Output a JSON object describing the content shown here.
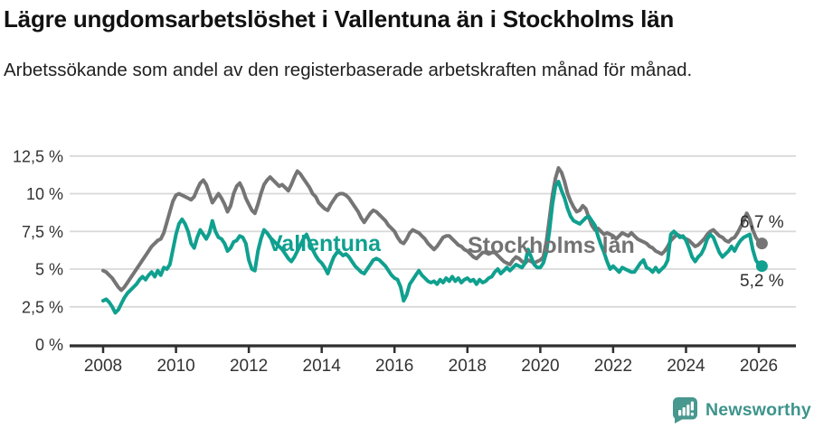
{
  "title": "Lägre ungdomsarbetslöshet i Vallentuna än i Stockholms län",
  "subtitle": "Arbetssökande som andel av den registerbaserade arbetskraften månad för månad.",
  "footer": {
    "brand": "Newsworthy"
  },
  "chart_data": {
    "type": "line",
    "title": "Lägre ungdomsarbetslöshet i Vallentuna än i Stockholms län",
    "subtitle": "Arbetssökande som andel av den registerbaserade arbetskraften månad för månad.",
    "grid": "horizontal",
    "legend_position": "inline-labels",
    "x_axis": {
      "tick_years": [
        2008,
        2010,
        2012,
        2014,
        2016,
        2018,
        2020,
        2022,
        2024,
        2026
      ],
      "range": [
        2008.0,
        2026.17
      ]
    },
    "y_axis": {
      "values": [
        0,
        2.5,
        5,
        7.5,
        10,
        12.5
      ],
      "labels": [
        "0 %",
        "2,5 %",
        "5 %",
        "7,5 %",
        "10 %",
        "12,5 %"
      ],
      "range": [
        0,
        13.0
      ]
    },
    "series": [
      {
        "id": "stockholms-lan",
        "name": "Stockholms län",
        "color": "#757575",
        "end_label": "6,7 %",
        "end_value": 6.7,
        "start_year": 2008,
        "points_per_year": 12,
        "values": [
          4.9,
          4.8,
          4.6,
          4.4,
          4.1,
          3.8,
          3.6,
          3.8,
          4.1,
          4.4,
          4.7,
          5.0,
          5.3,
          5.6,
          5.9,
          6.2,
          6.5,
          6.7,
          6.9,
          7.0,
          7.4,
          8.1,
          8.8,
          9.5,
          9.9,
          10.0,
          9.9,
          9.8,
          9.7,
          9.6,
          9.8,
          10.3,
          10.7,
          10.9,
          10.6,
          10.0,
          9.4,
          9.7,
          10.0,
          9.7,
          9.3,
          8.8,
          9.2,
          10.0,
          10.5,
          10.7,
          10.3,
          9.7,
          9.3,
          8.9,
          8.7,
          9.3,
          10.0,
          10.6,
          10.9,
          11.1,
          10.9,
          10.7,
          10.5,
          10.6,
          10.4,
          10.2,
          10.6,
          11.1,
          11.5,
          11.3,
          11.0,
          10.7,
          10.4,
          10.0,
          9.8,
          9.4,
          9.2,
          9.0,
          8.9,
          9.3,
          9.6,
          9.9,
          10.0,
          10.0,
          9.9,
          9.7,
          9.4,
          9.1,
          8.8,
          8.4,
          8.1,
          8.4,
          8.7,
          8.9,
          8.8,
          8.6,
          8.4,
          8.2,
          7.9,
          7.7,
          7.5,
          7.1,
          6.8,
          6.7,
          7.0,
          7.4,
          7.6,
          7.5,
          7.4,
          7.2,
          7.0,
          6.7,
          6.5,
          6.3,
          6.5,
          6.8,
          7.1,
          7.2,
          7.2,
          7.0,
          6.8,
          6.6,
          6.5,
          6.3,
          6.2,
          6.0,
          5.8,
          5.7,
          5.9,
          6.1,
          6.1,
          6.0,
          6.1,
          6.1,
          5.9,
          5.7,
          5.5,
          5.4,
          5.3,
          5.6,
          5.8,
          5.7,
          5.5,
          5.4,
          5.6,
          5.5,
          5.4,
          5.5,
          5.6,
          5.8,
          6.8,
          8.3,
          9.9,
          11.0,
          11.7,
          11.4,
          10.8,
          10.0,
          9.5,
          9.1,
          8.8,
          8.9,
          9.2,
          9.0,
          8.4,
          7.9,
          7.6,
          7.7,
          7.5,
          7.3,
          7.4,
          7.3,
          7.2,
          7.0,
          7.2,
          7.4,
          7.3,
          7.2,
          7.4,
          7.2,
          7.0,
          6.9,
          6.8,
          6.7,
          6.5,
          6.4,
          6.2,
          6.1,
          6.0,
          6.2,
          6.5,
          6.9,
          7.1,
          7.3,
          7.2,
          7.1,
          7.0,
          6.9,
          6.7,
          6.5,
          6.6,
          6.8,
          7.0,
          7.3,
          7.5,
          7.6,
          7.4,
          7.2,
          7.1,
          6.9,
          6.8,
          7.0,
          7.1,
          7.4,
          7.8,
          8.2,
          8.7,
          8.3,
          7.6,
          7.1,
          6.8,
          6.7
        ]
      },
      {
        "id": "vallentuna",
        "name": "Vallentuna",
        "color": "#10a08f",
        "end_label": "5,2 %",
        "end_value": 5.2,
        "start_year": 2008,
        "points_per_year": 12,
        "values": [
          2.9,
          3.0,
          2.8,
          2.5,
          2.1,
          2.3,
          2.7,
          3.1,
          3.4,
          3.6,
          3.8,
          4.0,
          4.3,
          4.5,
          4.3,
          4.6,
          4.8,
          4.5,
          4.9,
          4.6,
          5.1,
          5.0,
          5.3,
          6.3,
          7.3,
          8.0,
          8.3,
          8.0,
          7.5,
          6.7,
          6.4,
          7.1,
          7.6,
          7.3,
          7.0,
          7.4,
          8.2,
          7.5,
          7.1,
          7.0,
          6.7,
          6.2,
          6.4,
          6.8,
          6.9,
          7.2,
          7.1,
          6.7,
          5.6,
          5.0,
          4.9,
          6.2,
          7.0,
          7.6,
          7.4,
          7.1,
          6.9,
          6.7,
          6.5,
          6.3,
          6.0,
          5.7,
          5.5,
          5.8,
          6.2,
          6.6,
          7.0,
          7.3,
          6.8,
          6.3,
          5.9,
          5.6,
          5.4,
          5.1,
          4.7,
          5.3,
          5.8,
          6.1,
          6.1,
          5.9,
          6.0,
          5.8,
          5.5,
          5.2,
          5.0,
          4.8,
          4.7,
          5.0,
          5.3,
          5.6,
          5.7,
          5.6,
          5.4,
          5.2,
          4.9,
          4.6,
          4.4,
          4.3,
          3.8,
          2.9,
          3.3,
          4.0,
          4.3,
          4.6,
          4.9,
          4.6,
          4.4,
          4.2,
          4.1,
          4.2,
          4.0,
          4.3,
          4.1,
          4.4,
          4.2,
          4.5,
          4.2,
          4.4,
          4.1,
          4.3,
          4.4,
          4.2,
          4.3,
          4.0,
          4.3,
          4.1,
          4.2,
          4.4,
          4.5,
          4.8,
          5.0,
          4.7,
          4.9,
          5.1,
          4.9,
          5.1,
          5.3,
          5.2,
          5.1,
          5.4,
          6.3,
          5.8,
          5.3,
          5.1,
          5.1,
          5.4,
          6.1,
          7.5,
          9.3,
          10.5,
          10.8,
          10.2,
          9.7,
          9.0,
          8.5,
          8.2,
          8.1,
          8.0,
          8.2,
          8.4,
          8.5,
          8.2,
          7.9,
          7.2,
          6.6,
          6.1,
          5.5,
          5.0,
          5.2,
          5.0,
          4.8,
          5.1,
          5.0,
          4.9,
          4.8,
          4.8,
          5.1,
          5.4,
          5.6,
          5.1,
          5.0,
          4.8,
          5.1,
          4.8,
          5.0,
          5.2,
          5.6,
          7.3,
          7.5,
          7.3,
          7.1,
          7.2,
          6.9,
          6.4,
          5.8,
          5.5,
          5.8,
          6.0,
          6.4,
          7.0,
          7.3,
          7.1,
          6.6,
          6.1,
          5.8,
          6.0,
          6.2,
          6.5,
          6.2,
          6.6,
          6.9,
          7.1,
          7.2,
          7.3,
          6.3,
          5.6,
          5.3,
          5.2
        ]
      }
    ]
  }
}
